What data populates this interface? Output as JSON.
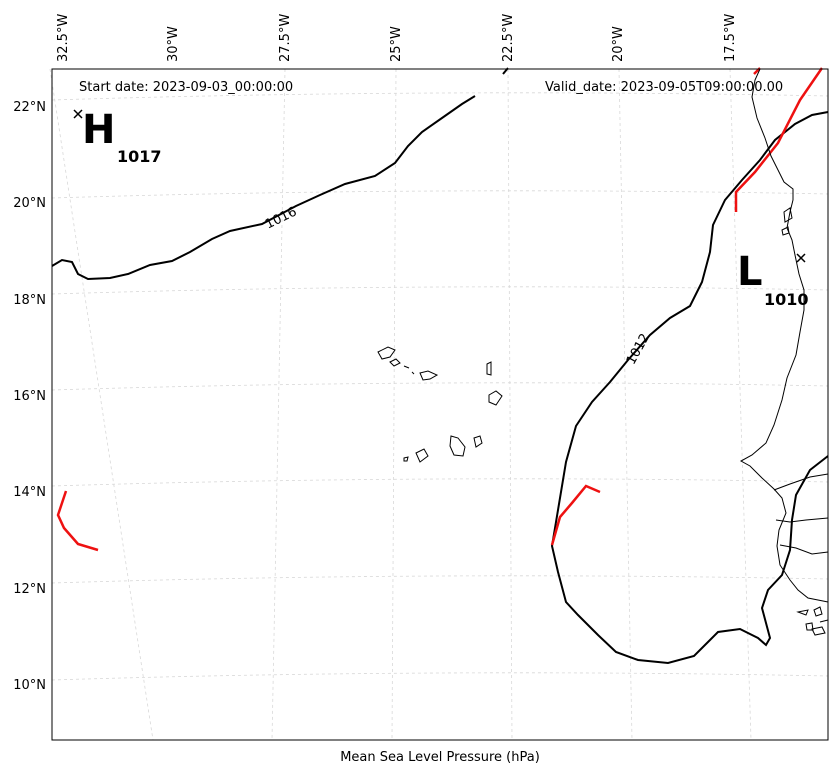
{
  "map": {
    "start_date": "Start date: 2023-09-03_00:00:00",
    "valid_date": "Valid_date: 2023-09-05T09:00:00.00",
    "caption": "Mean Sea Level Pressure (hPa)",
    "lon_ticks": [
      "32.5°W",
      "30°W",
      "27.5°W",
      "25°W",
      "22.5°W",
      "20°W",
      "17.5°W"
    ],
    "lat_ticks": [
      "22°N",
      "20°N",
      "18°N",
      "16°N",
      "14°N",
      "12°N",
      "10°N"
    ],
    "high": {
      "letter": "H",
      "value": "1017"
    },
    "low": {
      "letter": "L",
      "value": "1010"
    },
    "isobars": [
      {
        "value": 1016,
        "label": "1016"
      },
      {
        "value": 1012,
        "label": "1012"
      }
    ],
    "colors": {
      "isobar": "#000000",
      "front": "#ee1111",
      "coast": "#000000",
      "grid": "#cccccc"
    }
  }
}
